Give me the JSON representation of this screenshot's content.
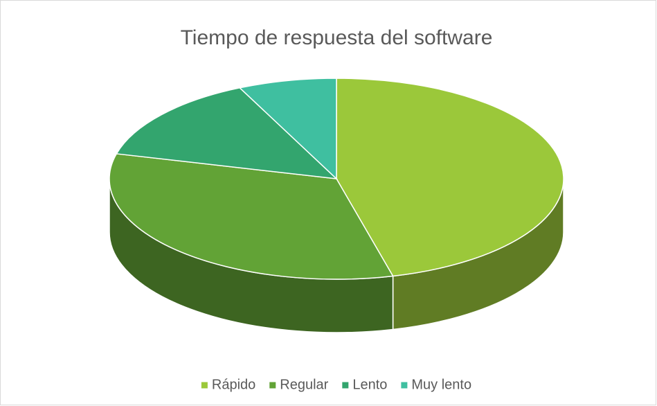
{
  "chart_data": {
    "type": "pie",
    "title": "Tiempo de respuesta del software",
    "categories": [
      "Rápido",
      "Regular",
      "Lento",
      "Muy lento"
    ],
    "values": [
      46,
      33,
      14,
      7
    ],
    "colors": [
      "#9bc83a",
      "#62a336",
      "#33a56e",
      "#3fbfa0"
    ],
    "legend": "bottom"
  }
}
